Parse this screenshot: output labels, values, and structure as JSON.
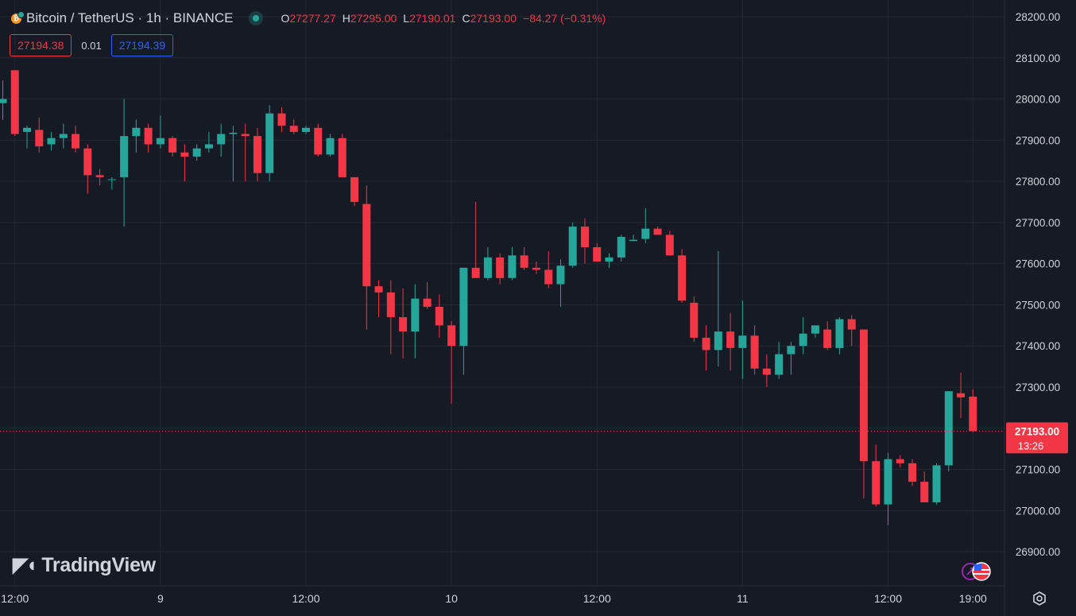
{
  "header": {
    "symbol": "Bitcoin / TetherUS · 1h · BINANCE",
    "ohlc": [
      {
        "key": "O",
        "value": "27277.27"
      },
      {
        "key": "H",
        "value": "27295.00"
      },
      {
        "key": "L",
        "value": "27190.01"
      },
      {
        "key": "C",
        "value": "27193.00"
      }
    ],
    "change": "−84.27 (−0.31%)"
  },
  "quote": {
    "bid": "27194.38",
    "spread": "0.01",
    "ask": "27194.39"
  },
  "branding": {
    "logo_text": "TradingView"
  },
  "current_price": {
    "value": "27193.00",
    "countdown": "13:26"
  },
  "colors": {
    "up": "#26a69a",
    "down": "#f23645",
    "background": "#161a25",
    "grid": "#242833",
    "text": "#d1d4dc"
  },
  "chart_data": {
    "type": "candlestick",
    "interval": "1h",
    "y_range": [
      26840,
      28240
    ],
    "y_ticks": [
      "28200.00",
      "28100.00",
      "28000.00",
      "27900.00",
      "27800.00",
      "27700.00",
      "27600.00",
      "27500.00",
      "27400.00",
      "27300.00",
      "27200.00",
      "27100.00",
      "27000.00",
      "26900.00"
    ],
    "x_ticks": [
      {
        "label": "12:00",
        "index": 1
      },
      {
        "label": "9",
        "index": 13
      },
      {
        "label": "12:00",
        "index": 25
      },
      {
        "label": "10",
        "index": 37
      },
      {
        "label": "12:00",
        "index": 49
      },
      {
        "label": "11",
        "index": 61
      },
      {
        "label": "12:00",
        "index": 73
      },
      {
        "label": "19:00",
        "index": 80
      }
    ],
    "candles": [
      [
        27990,
        28045,
        27950,
        28000
      ],
      [
        28070,
        28070,
        27910,
        27915
      ],
      [
        27920,
        27935,
        27880,
        27930
      ],
      [
        27925,
        27955,
        27870,
        27885
      ],
      [
        27890,
        27920,
        27875,
        27905
      ],
      [
        27905,
        27940,
        27880,
        27915
      ],
      [
        27915,
        27935,
        27870,
        27880
      ],
      [
        27880,
        27890,
        27770,
        27815
      ],
      [
        27815,
        27830,
        27790,
        27810
      ],
      [
        27805,
        27810,
        27780,
        27805
      ],
      [
        27810,
        28000,
        27690,
        27910
      ],
      [
        27910,
        27950,
        27870,
        27930
      ],
      [
        27930,
        27940,
        27870,
        27890
      ],
      [
        27890,
        27960,
        27880,
        27905
      ],
      [
        27905,
        27910,
        27860,
        27870
      ],
      [
        27870,
        27890,
        27800,
        27860
      ],
      [
        27860,
        27890,
        27850,
        27880
      ],
      [
        27880,
        27920,
        27870,
        27890
      ],
      [
        27890,
        27940,
        27860,
        27915
      ],
      [
        27915,
        27935,
        27800,
        27918
      ],
      [
        27915,
        27940,
        27800,
        27910
      ],
      [
        27910,
        27930,
        27800,
        27820
      ],
      [
        27820,
        27985,
        27800,
        27965
      ],
      [
        27965,
        27980,
        27920,
        27935
      ],
      [
        27935,
        27950,
        27915,
        27920
      ],
      [
        27920,
        27935,
        27915,
        27930
      ],
      [
        27930,
        27940,
        27860,
        27865
      ],
      [
        27865,
        27915,
        27860,
        27905
      ],
      [
        27905,
        27915,
        27810,
        27810
      ],
      [
        27810,
        27800,
        27740,
        27750
      ],
      [
        27745,
        27790,
        27440,
        27545
      ],
      [
        27545,
        27560,
        27470,
        27530
      ],
      [
        27530,
        27560,
        27380,
        27470
      ],
      [
        27470,
        27540,
        27370,
        27435
      ],
      [
        27435,
        27550,
        27370,
        27515
      ],
      [
        27515,
        27555,
        27490,
        27495
      ],
      [
        27495,
        27525,
        27420,
        27450
      ],
      [
        27450,
        27460,
        27260,
        27400
      ],
      [
        27400,
        27590,
        27330,
        27590
      ],
      [
        27590,
        27750,
        27570,
        27565
      ],
      [
        27565,
        27640,
        27560,
        27615
      ],
      [
        27615,
        27625,
        27550,
        27565
      ],
      [
        27565,
        27640,
        27560,
        27620
      ],
      [
        27620,
        27640,
        27585,
        27590
      ],
      [
        27590,
        27605,
        27575,
        27585
      ],
      [
        27585,
        27630,
        27540,
        27550
      ],
      [
        27550,
        27610,
        27495,
        27595
      ],
      [
        27595,
        27700,
        27590,
        27690
      ],
      [
        27690,
        27710,
        27600,
        27640
      ],
      [
        27640,
        27650,
        27605,
        27605
      ],
      [
        27605,
        27625,
        27590,
        27615
      ],
      [
        27615,
        27670,
        27605,
        27665
      ],
      [
        27655,
        27670,
        27655,
        27658
      ],
      [
        27660,
        27735,
        27650,
        27685
      ],
      [
        27685,
        27690,
        27670,
        27670
      ],
      [
        27670,
        27680,
        27620,
        27620
      ],
      [
        27620,
        27635,
        27505,
        27510
      ],
      [
        27505,
        27520,
        27410,
        27420
      ],
      [
        27420,
        27450,
        27340,
        27390
      ],
      [
        27390,
        27630,
        27350,
        27435
      ],
      [
        27435,
        27480,
        27340,
        27395
      ],
      [
        27395,
        27510,
        27320,
        27425
      ],
      [
        27425,
        27450,
        27330,
        27345
      ],
      [
        27345,
        27380,
        27300,
        27330
      ],
      [
        27330,
        27410,
        27320,
        27380
      ],
      [
        27380,
        27410,
        27330,
        27400
      ],
      [
        27400,
        27470,
        27380,
        27430
      ],
      [
        27430,
        27450,
        27420,
        27450
      ],
      [
        27440,
        27460,
        27390,
        27395
      ],
      [
        27395,
        27470,
        27380,
        27465
      ],
      [
        27465,
        27475,
        27400,
        27440
      ],
      [
        27440,
        27435,
        27030,
        27120
      ],
      [
        27120,
        27160,
        27010,
        27015
      ],
      [
        27015,
        27140,
        26965,
        27125
      ],
      [
        27125,
        27135,
        27105,
        27115
      ],
      [
        27115,
        27125,
        27060,
        27070
      ],
      [
        27070,
        27095,
        27020,
        27020
      ],
      [
        27020,
        27115,
        27015,
        27110
      ],
      [
        27110,
        27290,
        27095,
        27290
      ],
      [
        27285,
        27335,
        27225,
        27275
      ],
      [
        27277,
        27295,
        27190,
        27193
      ]
    ]
  }
}
